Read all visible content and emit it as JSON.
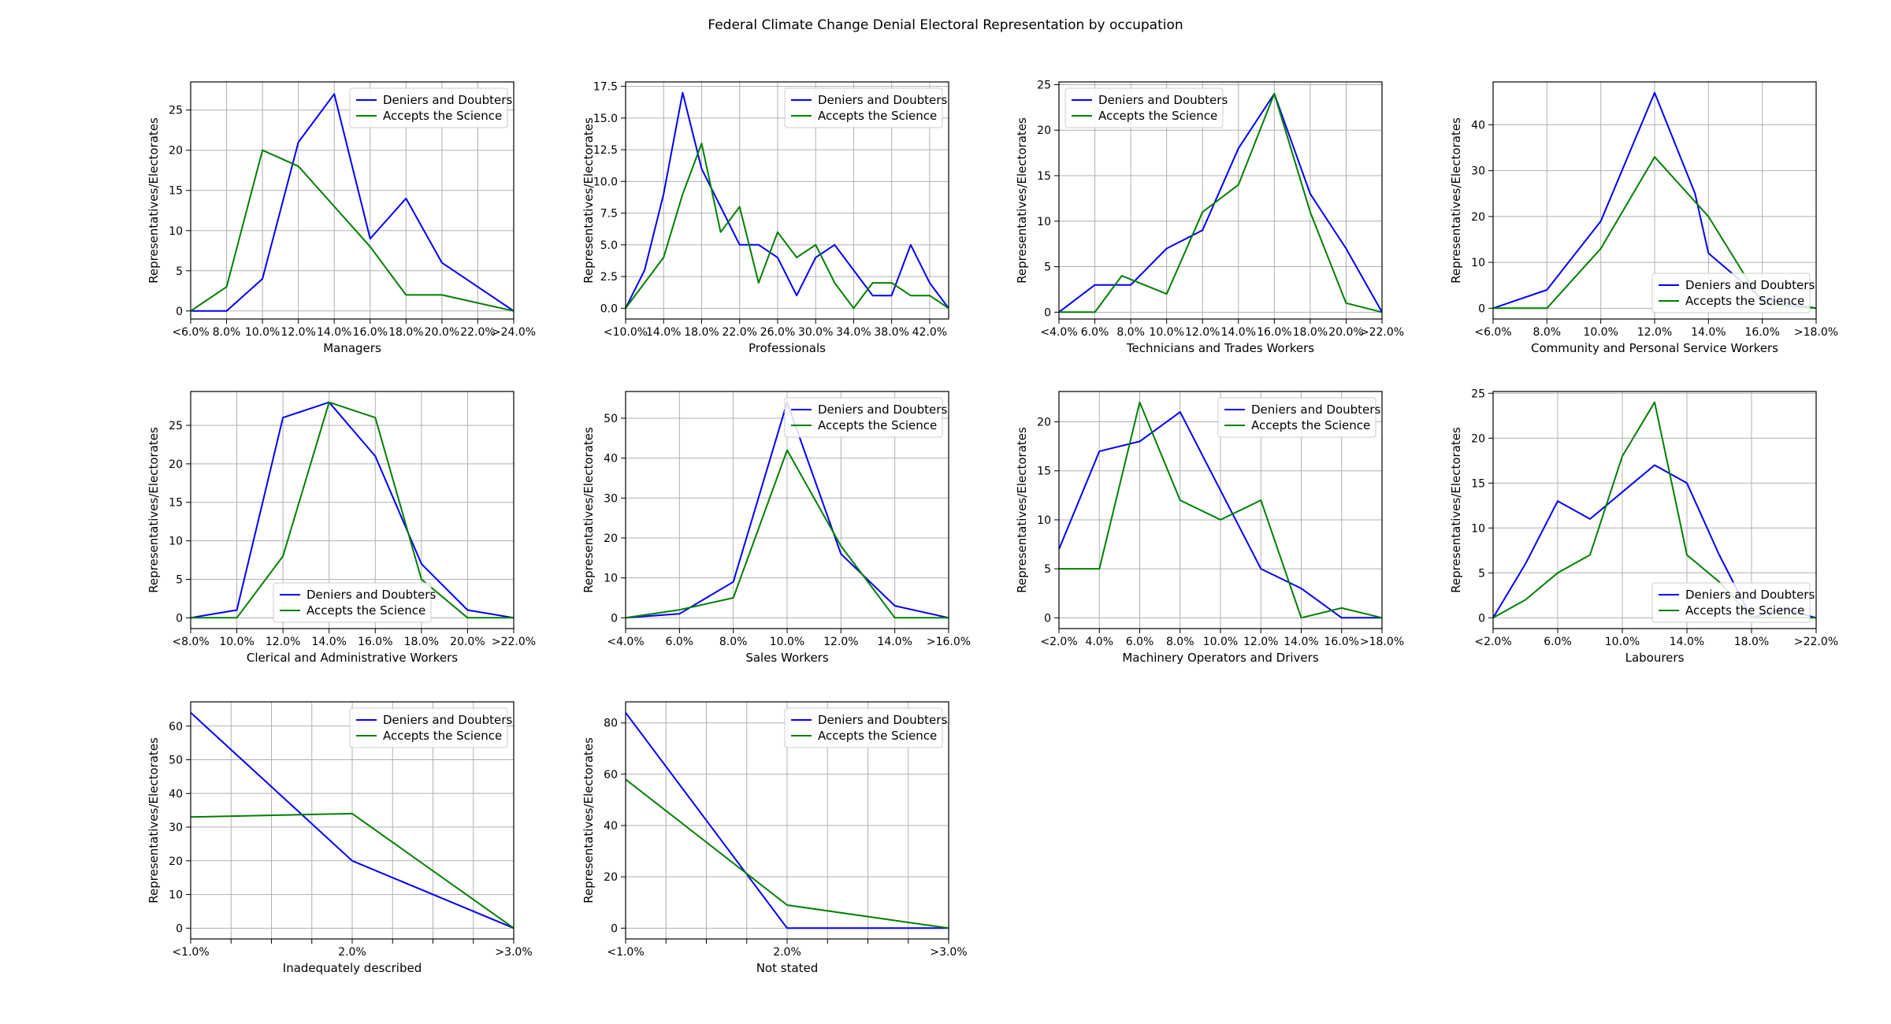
{
  "title": "Federal Climate Change Denial Electoral Representation by occupation",
  "chart_data": [
    {
      "type": "line",
      "xlabel": "Managers",
      "ylabel": "Representatives/Electorates",
      "xmin": 6,
      "xmax": 24,
      "ylim": [
        -1,
        28.5
      ],
      "xticks": [
        {
          "v": 6,
          "label": "<6.0%"
        },
        {
          "v": 8,
          "label": "8.0%"
        },
        {
          "v": 10,
          "label": "10.0%"
        },
        {
          "v": 12,
          "label": "12.0%"
        },
        {
          "v": 14,
          "label": "14.0%"
        },
        {
          "v": 16,
          "label": "16.0%"
        },
        {
          "v": 18,
          "label": "18.0%"
        },
        {
          "v": 20,
          "label": "20.0%"
        },
        {
          "v": 22,
          "label": "22.0%"
        },
        {
          "v": 24,
          "label": ">24.0%"
        }
      ],
      "yticks": [
        0,
        5,
        10,
        15,
        20,
        25
      ],
      "legend": "top-right",
      "series": [
        {
          "name": "Deniers and Doubters",
          "color": "#0000ff",
          "x": [
            6,
            8,
            10,
            12,
            14,
            16,
            18,
            20,
            24
          ],
          "y": [
            0,
            0,
            4,
            21,
            27,
            9,
            14,
            6,
            0
          ]
        },
        {
          "name": "Accepts the Science",
          "color": "#008000",
          "x": [
            6,
            8,
            10,
            12,
            16,
            18,
            20,
            24
          ],
          "y": [
            0,
            3,
            20,
            18,
            8,
            2,
            2,
            0
          ]
        }
      ]
    },
    {
      "type": "line",
      "xlabel": "Professionals",
      "ylabel": "Representatives/Electorates",
      "xmin": 10,
      "xmax": 44,
      "ylim": [
        -0.85,
        17.85
      ],
      "xticks": [
        {
          "v": 10,
          "label": "<10.0%"
        },
        {
          "v": 14,
          "label": "14.0%"
        },
        {
          "v": 18,
          "label": "18.0%"
        },
        {
          "v": 22,
          "label": "22.0%"
        },
        {
          "v": 26,
          "label": "26.0%"
        },
        {
          "v": 30,
          "label": "30.0%"
        },
        {
          "v": 34,
          "label": "34.0%"
        },
        {
          "v": 38,
          "label": "38.0%"
        },
        {
          "v": 42,
          "label": "42.0%"
        }
      ],
      "ytick_labels": [
        "0.0",
        "2.5",
        "5.0",
        "7.5",
        "10.0",
        "12.5",
        "15.0",
        "17.5"
      ],
      "yticks": [
        0,
        2.5,
        5,
        7.5,
        10,
        12.5,
        15,
        17.5
      ],
      "legend": "top-right",
      "series": [
        {
          "name": "Deniers and Doubters",
          "color": "#0000ff",
          "x": [
            10,
            12,
            14,
            16,
            18,
            20,
            22,
            24,
            26,
            28,
            30,
            32,
            34,
            36,
            38,
            40,
            42,
            44
          ],
          "y": [
            0,
            3,
            9,
            17,
            11,
            8,
            5,
            5,
            4,
            1,
            4,
            5,
            3,
            1,
            1,
            5,
            2,
            0
          ]
        },
        {
          "name": "Accepts the Science",
          "color": "#008000",
          "x": [
            10,
            14,
            16,
            18,
            20,
            22,
            24,
            26,
            28,
            30,
            32,
            34,
            36,
            38,
            40,
            42,
            44
          ],
          "y": [
            0,
            4,
            9,
            13,
            6,
            8,
            2,
            6,
            4,
            5,
            2,
            0,
            2,
            2,
            1,
            1,
            0
          ]
        }
      ]
    },
    {
      "type": "line",
      "xlabel": "Technicians and Trades Workers",
      "ylabel": "Representatives/Electorates",
      "xmin": 4,
      "xmax": 22,
      "ylim": [
        -0.75,
        25.3
      ],
      "xticks": [
        {
          "v": 4,
          "label": "<4.0%"
        },
        {
          "v": 6,
          "label": "6.0%"
        },
        {
          "v": 8,
          "label": "8.0%"
        },
        {
          "v": 10,
          "label": "10.0%"
        },
        {
          "v": 12,
          "label": "12.0%"
        },
        {
          "v": 14,
          "label": "14.0%"
        },
        {
          "v": 16,
          "label": "16.0%"
        },
        {
          "v": 18,
          "label": "18.0%"
        },
        {
          "v": 20,
          "label": "20.0%"
        },
        {
          "v": 22,
          "label": ">22.0%"
        }
      ],
      "yticks": [
        0,
        5,
        10,
        15,
        20,
        25
      ],
      "legend": "top-left",
      "series": [
        {
          "name": "Deniers and Doubters",
          "color": "#0000ff",
          "x": [
            4,
            6,
            8,
            10,
            12,
            14,
            16,
            18,
            20,
            22
          ],
          "y": [
            0,
            3,
            3,
            7,
            9,
            18,
            24,
            13,
            7,
            0
          ]
        },
        {
          "name": "Accepts the Science",
          "color": "#008000",
          "x": [
            4,
            6,
            7.5,
            10,
            12,
            14,
            16,
            18,
            20,
            22
          ],
          "y": [
            0,
            0,
            4,
            2,
            11,
            14,
            24,
            11,
            1,
            0
          ]
        }
      ]
    },
    {
      "type": "line",
      "xlabel": "Community and Personal Service Workers",
      "ylabel": "Representatives/Electorates",
      "xmin": 6,
      "xmax": 18,
      "ylim": [
        -2.35,
        49.35
      ],
      "xticks": [
        {
          "v": 6,
          "label": "<6.0%"
        },
        {
          "v": 8,
          "label": "8.0%"
        },
        {
          "v": 10,
          "label": "10.0%"
        },
        {
          "v": 12,
          "label": "12.0%"
        },
        {
          "v": 14,
          "label": "14.0%"
        },
        {
          "v": 16,
          "label": "16.0%"
        },
        {
          "v": 18,
          "label": ">18.0%"
        }
      ],
      "yticks": [
        0,
        10,
        20,
        30,
        40
      ],
      "legend": "bottom-right",
      "series": [
        {
          "name": "Deniers and Doubters",
          "color": "#0000ff",
          "x": [
            6,
            8,
            10,
            12,
            13.5,
            14,
            16,
            18
          ],
          "y": [
            0,
            4,
            19,
            47,
            25,
            12,
            2,
            0
          ]
        },
        {
          "name": "Accepts the Science",
          "color": "#008000",
          "x": [
            6,
            8,
            10,
            12,
            14,
            16,
            18
          ],
          "y": [
            0,
            0,
            13,
            33,
            20,
            1,
            0
          ]
        }
      ]
    },
    {
      "type": "line",
      "xlabel": "Clerical and Administrative Workers",
      "ylabel": "Representatives/Electorates",
      "xmin": 8,
      "xmax": 22,
      "ylim": [
        -1.4,
        29.4
      ],
      "xticks": [
        {
          "v": 8,
          "label": "<8.0%"
        },
        {
          "v": 10,
          "label": "10.0%"
        },
        {
          "v": 12,
          "label": "12.0%"
        },
        {
          "v": 14,
          "label": "14.0%"
        },
        {
          "v": 16,
          "label": "16.0%"
        },
        {
          "v": 18,
          "label": "18.0%"
        },
        {
          "v": 20,
          "label": "20.0%"
        },
        {
          "v": 22,
          "label": ">22.0%"
        }
      ],
      "yticks": [
        0,
        5,
        10,
        15,
        20,
        25
      ],
      "legend": "bottom-center",
      "series": [
        {
          "name": "Deniers and Doubters",
          "color": "#0000ff",
          "x": [
            8,
            10,
            12,
            14,
            16,
            18,
            20,
            22
          ],
          "y": [
            0,
            1,
            26,
            28,
            21,
            7,
            1,
            0
          ]
        },
        {
          "name": "Accepts the Science",
          "color": "#008000",
          "x": [
            8,
            10,
            12,
            14,
            16,
            18,
            20,
            22
          ],
          "y": [
            0,
            0,
            8,
            28,
            26,
            5,
            0,
            0
          ]
        }
      ]
    },
    {
      "type": "line",
      "xlabel": "Sales Workers",
      "ylabel": "Representatives/Electorates",
      "xmin": 4,
      "xmax": 16,
      "ylim": [
        -2.7,
        56.7
      ],
      "xticks": [
        {
          "v": 4,
          "label": "<4.0%"
        },
        {
          "v": 6,
          "label": "6.0%"
        },
        {
          "v": 8,
          "label": "8.0%"
        },
        {
          "v": 10,
          "label": "10.0%"
        },
        {
          "v": 12,
          "label": "12.0%"
        },
        {
          "v": 14,
          "label": "14.0%"
        },
        {
          "v": 16,
          "label": ">16.0%"
        }
      ],
      "yticks": [
        0,
        10,
        20,
        30,
        40,
        50
      ],
      "legend": "top-right",
      "series": [
        {
          "name": "Deniers and Doubters",
          "color": "#0000ff",
          "x": [
            4,
            6,
            8,
            10,
            12,
            14,
            16
          ],
          "y": [
            0,
            1,
            9,
            54,
            16,
            3,
            0
          ]
        },
        {
          "name": "Accepts the Science",
          "color": "#008000",
          "x": [
            4,
            6,
            8,
            10,
            12,
            14,
            16
          ],
          "y": [
            0,
            2,
            5,
            42,
            18,
            0,
            0
          ]
        }
      ]
    },
    {
      "type": "line",
      "xlabel": "Machinery Operators and Drivers",
      "ylabel": "Representatives/Electorates",
      "xmin": 2,
      "xmax": 18,
      "ylim": [
        -1.1,
        23.1
      ],
      "xticks": [
        {
          "v": 2,
          "label": "<2.0%"
        },
        {
          "v": 4,
          "label": "4.0%"
        },
        {
          "v": 6,
          "label": "6.0%"
        },
        {
          "v": 8,
          "label": "8.0%"
        },
        {
          "v": 10,
          "label": "10.0%"
        },
        {
          "v": 12,
          "label": "12.0%"
        },
        {
          "v": 14,
          "label": "14.0%"
        },
        {
          "v": 16,
          "label": "16.0%"
        },
        {
          "v": 18,
          "label": ">18.0%"
        }
      ],
      "yticks": [
        0,
        5,
        10,
        15,
        20
      ],
      "legend": "top-right",
      "series": [
        {
          "name": "Deniers and Doubters",
          "color": "#0000ff",
          "x": [
            2,
            4,
            6,
            8,
            10,
            12,
            14,
            16,
            18
          ],
          "y": [
            7,
            17,
            18,
            21,
            13,
            5,
            3,
            0,
            0
          ]
        },
        {
          "name": "Accepts the Science",
          "color": "#008000",
          "x": [
            2,
            4,
            6,
            8,
            10,
            12,
            14,
            16,
            18
          ],
          "y": [
            5,
            5,
            22,
            12,
            10,
            12,
            0,
            1,
            0
          ]
        }
      ]
    },
    {
      "type": "line",
      "xlabel": "Labourers",
      "ylabel": "Representatives/Electorates",
      "xmin": 2,
      "xmax": 22,
      "ylim": [
        -1.2,
        25.2
      ],
      "xticks": [
        {
          "v": 2,
          "label": "<2.0%"
        },
        {
          "v": 6,
          "label": "6.0%"
        },
        {
          "v": 10,
          "label": "10.0%"
        },
        {
          "v": 14,
          "label": "14.0%"
        },
        {
          "v": 18,
          "label": "18.0%"
        },
        {
          "v": 22,
          "label": ">22.0%"
        }
      ],
      "yticks": [
        0,
        5,
        10,
        15,
        20,
        25
      ],
      "legend": "bottom-right",
      "series": [
        {
          "name": "Deniers and Doubters",
          "color": "#0000ff",
          "x": [
            2,
            4,
            6,
            8,
            10,
            12,
            14,
            16,
            18,
            20,
            22
          ],
          "y": [
            0,
            6,
            13,
            11,
            14,
            17,
            15,
            7,
            0,
            1,
            0
          ]
        },
        {
          "name": "Accepts the Science",
          "color": "#008000",
          "x": [
            2,
            4,
            6,
            8,
            10,
            12,
            14,
            16,
            18,
            20,
            22
          ],
          "y": [
            0,
            2,
            5,
            7,
            18,
            24,
            7,
            4,
            0,
            0,
            0
          ]
        }
      ]
    },
    {
      "type": "line",
      "xlabel": "Inadequately described",
      "ylabel": "Representatives/Electorates",
      "xmin": 1,
      "xmax": 3,
      "ylim": [
        -3.2,
        67.2
      ],
      "xticks": [
        {
          "v": 1,
          "label": "<1.0%"
        },
        {
          "v": 1.25,
          "label": ""
        },
        {
          "v": 1.5,
          "label": ""
        },
        {
          "v": 1.75,
          "label": ""
        },
        {
          "v": 2,
          "label": "2.0%"
        },
        {
          "v": 2.25,
          "label": ""
        },
        {
          "v": 2.5,
          "label": ""
        },
        {
          "v": 2.75,
          "label": ""
        },
        {
          "v": 3,
          "label": ">3.0%"
        }
      ],
      "yticks": [
        0,
        10,
        20,
        30,
        40,
        50,
        60
      ],
      "legend": "top-right",
      "series": [
        {
          "name": "Deniers and Doubters",
          "color": "#0000ff",
          "x": [
            1,
            2,
            3
          ],
          "y": [
            64,
            20,
            0
          ]
        },
        {
          "name": "Accepts the Science",
          "color": "#008000",
          "x": [
            1,
            2,
            3
          ],
          "y": [
            33,
            34,
            0
          ]
        }
      ]
    },
    {
      "type": "line",
      "xlabel": "Not stated",
      "ylabel": "Representatives/Electorates",
      "xmin": 1,
      "xmax": 3,
      "ylim": [
        -4.2,
        88.2
      ],
      "xticks": [
        {
          "v": 1,
          "label": "<1.0%"
        },
        {
          "v": 1.25,
          "label": ""
        },
        {
          "v": 1.5,
          "label": ""
        },
        {
          "v": 1.75,
          "label": ""
        },
        {
          "v": 2,
          "label": "2.0%"
        },
        {
          "v": 2.25,
          "label": ""
        },
        {
          "v": 2.5,
          "label": ""
        },
        {
          "v": 2.75,
          "label": ""
        },
        {
          "v": 3,
          "label": ">3.0%"
        }
      ],
      "yticks": [
        0,
        20,
        40,
        60,
        80
      ],
      "legend": "top-right",
      "series": [
        {
          "name": "Deniers and Doubters",
          "color": "#0000ff",
          "x": [
            1,
            2,
            3
          ],
          "y": [
            84,
            0,
            0
          ]
        },
        {
          "name": "Accepts the Science",
          "color": "#008000",
          "x": [
            1,
            2,
            3
          ],
          "y": [
            58,
            9,
            0
          ]
        }
      ]
    }
  ]
}
